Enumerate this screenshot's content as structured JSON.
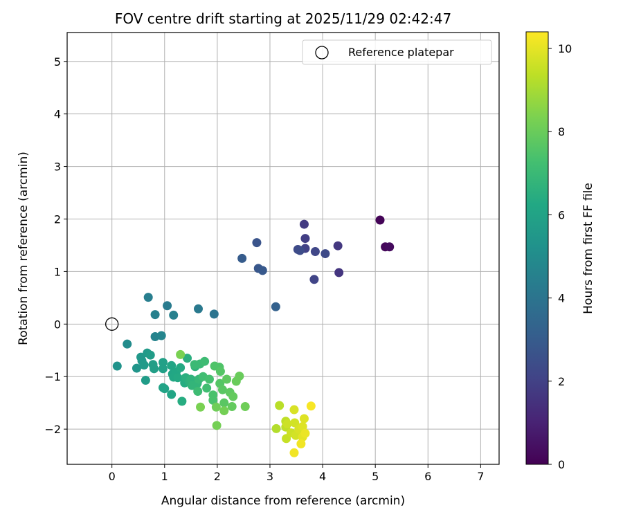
{
  "chart_data": {
    "type": "scatter",
    "title": "FOV centre drift starting at 2025/11/29 02:42:47",
    "xlabel": "Angular distance from reference (arcmin)",
    "ylabel": "Rotation from reference (arcmin)",
    "xlim": [
      -0.85,
      7.35
    ],
    "ylim": [
      -2.67,
      5.55
    ],
    "xticks": [
      0,
      1,
      2,
      3,
      4,
      5,
      6,
      7
    ],
    "yticks": [
      -2,
      -1,
      0,
      1,
      2,
      3,
      4,
      5
    ],
    "grid": true,
    "legend": {
      "position": "top-right",
      "entries": [
        {
          "label": "Reference platepar",
          "marker": "open-circle"
        }
      ]
    },
    "reference_point": {
      "x": 0,
      "y": 0
    },
    "colorbar": {
      "label": "Hours from first FF file",
      "min": 0,
      "max": 10.4,
      "ticks": [
        0,
        2,
        4,
        6,
        8,
        10
      ],
      "colormap": "viridis"
    },
    "points": [
      {
        "x": 5.09,
        "y": 1.98,
        "c": 0.1
      },
      {
        "x": 5.19,
        "y": 1.47,
        "c": 0.2
      },
      {
        "x": 5.27,
        "y": 1.47,
        "c": 0.3
      },
      {
        "x": 4.31,
        "y": 0.98,
        "c": 1.6
      },
      {
        "x": 4.29,
        "y": 1.49,
        "c": 1.7
      },
      {
        "x": 3.65,
        "y": 1.9,
        "c": 1.8
      },
      {
        "x": 3.67,
        "y": 1.63,
        "c": 1.9
      },
      {
        "x": 3.67,
        "y": 1.44,
        "c": 2.0
      },
      {
        "x": 3.84,
        "y": 0.85,
        "c": 2.1
      },
      {
        "x": 3.86,
        "y": 1.38,
        "c": 2.2
      },
      {
        "x": 4.05,
        "y": 1.34,
        "c": 2.3
      },
      {
        "x": 3.53,
        "y": 1.42,
        "c": 2.3
      },
      {
        "x": 3.57,
        "y": 1.4,
        "c": 2.4
      },
      {
        "x": 2.75,
        "y": 1.55,
        "c": 2.7
      },
      {
        "x": 2.78,
        "y": 1.06,
        "c": 2.8
      },
      {
        "x": 2.86,
        "y": 1.02,
        "c": 2.9
      },
      {
        "x": 2.47,
        "y": 1.25,
        "c": 3.0
      },
      {
        "x": 3.11,
        "y": 0.33,
        "c": 3.2
      },
      {
        "x": 1.94,
        "y": 0.19,
        "c": 4.0
      },
      {
        "x": 1.64,
        "y": 0.29,
        "c": 4.2
      },
      {
        "x": 1.05,
        "y": 0.35,
        "c": 4.3
      },
      {
        "x": 0.69,
        "y": 0.51,
        "c": 4.4
      },
      {
        "x": 0.82,
        "y": 0.18,
        "c": 4.5
      },
      {
        "x": 1.17,
        "y": 0.17,
        "c": 4.5
      },
      {
        "x": 0.82,
        "y": -0.24,
        "c": 4.6
      },
      {
        "x": 0.94,
        "y": -0.22,
        "c": 4.7
      },
      {
        "x": 0.29,
        "y": -0.38,
        "c": 5.0
      },
      {
        "x": 0.1,
        "y": -0.8,
        "c": 5.3
      },
      {
        "x": 0.47,
        "y": -0.84,
        "c": 5.4
      },
      {
        "x": 0.55,
        "y": -0.63,
        "c": 5.5
      },
      {
        "x": 0.57,
        "y": -0.7,
        "c": 5.5
      },
      {
        "x": 0.61,
        "y": -0.78,
        "c": 5.6
      },
      {
        "x": 0.67,
        "y": -0.55,
        "c": 5.6
      },
      {
        "x": 0.73,
        "y": -0.59,
        "c": 5.7
      },
      {
        "x": 0.64,
        "y": -1.07,
        "c": 5.7
      },
      {
        "x": 0.78,
        "y": -0.77,
        "c": 5.8
      },
      {
        "x": 0.8,
        "y": -0.85,
        "c": 5.8
      },
      {
        "x": 0.97,
        "y": -0.73,
        "c": 5.9
      },
      {
        "x": 0.97,
        "y": -0.85,
        "c": 5.9
      },
      {
        "x": 0.97,
        "y": -1.21,
        "c": 6.0
      },
      {
        "x": 1.0,
        "y": -1.23,
        "c": 6.0
      },
      {
        "x": 1.13,
        "y": -0.79,
        "c": 6.1
      },
      {
        "x": 1.15,
        "y": -0.95,
        "c": 6.1
      },
      {
        "x": 1.13,
        "y": -1.34,
        "c": 6.1
      },
      {
        "x": 1.17,
        "y": -1.01,
        "c": 6.2
      },
      {
        "x": 1.22,
        "y": -0.91,
        "c": 6.2
      },
      {
        "x": 1.25,
        "y": -1.02,
        "c": 6.3
      },
      {
        "x": 1.3,
        "y": -0.83,
        "c": 6.3
      },
      {
        "x": 1.33,
        "y": -1.47,
        "c": 6.4
      },
      {
        "x": 1.38,
        "y": -1.12,
        "c": 6.4
      },
      {
        "x": 1.4,
        "y": -1.02,
        "c": 6.5
      },
      {
        "x": 1.43,
        "y": -0.65,
        "c": 6.5
      },
      {
        "x": 1.47,
        "y": -1.1,
        "c": 6.6
      },
      {
        "x": 1.5,
        "y": -1.05,
        "c": 6.7
      },
      {
        "x": 1.58,
        "y": -0.81,
        "c": 6.7
      },
      {
        "x": 1.52,
        "y": -1.17,
        "c": 6.8
      },
      {
        "x": 1.62,
        "y": -1.13,
        "c": 6.8
      },
      {
        "x": 1.65,
        "y": -1.05,
        "c": 6.9
      },
      {
        "x": 1.67,
        "y": -0.76,
        "c": 7.0
      },
      {
        "x": 1.57,
        "y": -0.77,
        "c": 7.0
      },
      {
        "x": 1.63,
        "y": -1.28,
        "c": 7.1
      },
      {
        "x": 1.76,
        "y": -0.71,
        "c": 7.1
      },
      {
        "x": 1.73,
        "y": -1.0,
        "c": 7.2
      },
      {
        "x": 1.8,
        "y": -1.22,
        "c": 7.2
      },
      {
        "x": 1.85,
        "y": -1.05,
        "c": 7.3
      },
      {
        "x": 1.92,
        "y": -1.35,
        "c": 7.4
      },
      {
        "x": 1.92,
        "y": -1.45,
        "c": 7.4
      },
      {
        "x": 1.95,
        "y": -0.8,
        "c": 7.5
      },
      {
        "x": 2.04,
        "y": -0.82,
        "c": 7.5
      },
      {
        "x": 2.06,
        "y": -0.9,
        "c": 7.6
      },
      {
        "x": 2.05,
        "y": -1.13,
        "c": 7.6
      },
      {
        "x": 2.1,
        "y": -1.25,
        "c": 7.7
      },
      {
        "x": 2.13,
        "y": -1.5,
        "c": 7.7
      },
      {
        "x": 2.18,
        "y": -1.05,
        "c": 7.8
      },
      {
        "x": 2.24,
        "y": -1.3,
        "c": 7.8
      },
      {
        "x": 2.3,
        "y": -1.38,
        "c": 7.9
      },
      {
        "x": 2.28,
        "y": -1.57,
        "c": 7.9
      },
      {
        "x": 2.36,
        "y": -1.09,
        "c": 8.0
      },
      {
        "x": 2.42,
        "y": -0.99,
        "c": 8.0
      },
      {
        "x": 2.53,
        "y": -1.57,
        "c": 8.1
      },
      {
        "x": 1.98,
        "y": -1.58,
        "c": 8.1
      },
      {
        "x": 2.13,
        "y": -1.65,
        "c": 8.2
      },
      {
        "x": 1.99,
        "y": -1.93,
        "c": 8.2
      },
      {
        "x": 1.68,
        "y": -1.58,
        "c": 8.3
      },
      {
        "x": 1.3,
        "y": -0.58,
        "c": 8.3
      },
      {
        "x": 3.12,
        "y": -1.99,
        "c": 9.2
      },
      {
        "x": 3.18,
        "y": -1.55,
        "c": 9.3
      },
      {
        "x": 3.3,
        "y": -1.85,
        "c": 9.4
      },
      {
        "x": 3.3,
        "y": -1.96,
        "c": 9.4
      },
      {
        "x": 3.31,
        "y": -2.18,
        "c": 9.5
      },
      {
        "x": 3.33,
        "y": -1.9,
        "c": 9.6
      },
      {
        "x": 3.4,
        "y": -2.07,
        "c": 9.6
      },
      {
        "x": 3.47,
        "y": -1.88,
        "c": 9.7
      },
      {
        "x": 3.49,
        "y": -2.12,
        "c": 9.7
      },
      {
        "x": 3.46,
        "y": -1.63,
        "c": 9.8
      },
      {
        "x": 3.55,
        "y": -2.0,
        "c": 9.8
      },
      {
        "x": 3.62,
        "y": -1.95,
        "c": 9.9
      },
      {
        "x": 3.65,
        "y": -1.8,
        "c": 9.9
      },
      {
        "x": 3.62,
        "y": -2.15,
        "c": 10.0
      },
      {
        "x": 3.67,
        "y": -2.08,
        "c": 10.1
      },
      {
        "x": 3.59,
        "y": -2.28,
        "c": 10.2
      },
      {
        "x": 3.46,
        "y": -2.45,
        "c": 10.2
      },
      {
        "x": 3.78,
        "y": -1.56,
        "c": 10.3
      }
    ]
  }
}
